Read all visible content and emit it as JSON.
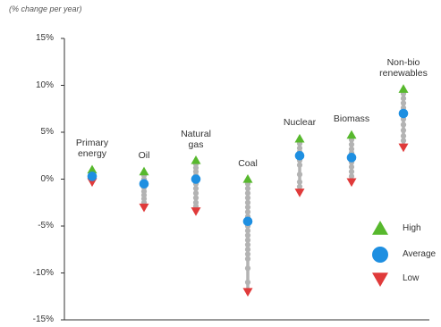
{
  "chart_data": {
    "type": "scatter",
    "unit_note": "(% change per year)",
    "ylim": [
      -15,
      15
    ],
    "yticks": [
      15,
      10,
      5,
      0,
      -5,
      -10,
      -15
    ],
    "ytick_labels": [
      "15%",
      "10%",
      "5%",
      "0%",
      "-5%",
      "-10%",
      "-15%"
    ],
    "categories": [
      {
        "label": "Primary\nenergy",
        "high": 1.0,
        "average": 0.3,
        "low": -0.3,
        "spread": [
          0.8,
          0.6,
          0.4,
          0.2,
          0.0,
          -0.1
        ]
      },
      {
        "label": "Oil",
        "high": 0.8,
        "average": -0.5,
        "low": -3.0,
        "spread": [
          0.4,
          0.0,
          -0.9,
          -1.3,
          -1.7,
          -2.1,
          -2.5
        ]
      },
      {
        "label": "Natural\ngas",
        "high": 2.0,
        "average": 0.0,
        "low": -3.4,
        "spread": [
          1.6,
          1.2,
          0.8,
          0.4,
          -0.5,
          -1.0,
          -1.5,
          -2.0,
          -2.5,
          -2.9
        ]
      },
      {
        "label": "Coal",
        "high": 0.0,
        "average": -4.5,
        "low": -12.0,
        "spread": [
          -0.5,
          -1.0,
          -1.5,
          -2.0,
          -2.5,
          -3.0,
          -3.5,
          -4.0,
          -5.0,
          -5.5,
          -6.0,
          -6.5,
          -7.0,
          -7.5,
          -8.0,
          -8.5,
          -9.5,
          -11.0
        ]
      },
      {
        "label": "Nuclear",
        "high": 4.3,
        "average": 2.5,
        "low": -1.4,
        "spread": [
          3.8,
          3.3,
          2.9,
          2.0,
          1.5,
          0.5,
          -0.3,
          -0.8
        ]
      },
      {
        "label": "Biomass",
        "high": 4.7,
        "average": 2.3,
        "low": -0.3,
        "spread": [
          4.2,
          3.7,
          3.2,
          2.8,
          1.8,
          1.3,
          0.8,
          0.3
        ]
      },
      {
        "label": "Non-bio\nrenewables",
        "high": 9.6,
        "average": 7.0,
        "low": 3.4,
        "spread": [
          9.1,
          8.6,
          8.1,
          7.6,
          6.4,
          5.8,
          5.2,
          4.6,
          4.1
        ]
      }
    ],
    "legend": [
      {
        "key": "high",
        "label": "High",
        "color": "#57b82d",
        "shape": "triangle-up"
      },
      {
        "key": "average",
        "label": "Average",
        "color": "#1e8fe1",
        "shape": "circle"
      },
      {
        "key": "low",
        "label": "Low",
        "color": "#e03a3a",
        "shape": "triangle-down"
      }
    ],
    "spread_color": "#b3b3b3",
    "legend_position": "right"
  }
}
